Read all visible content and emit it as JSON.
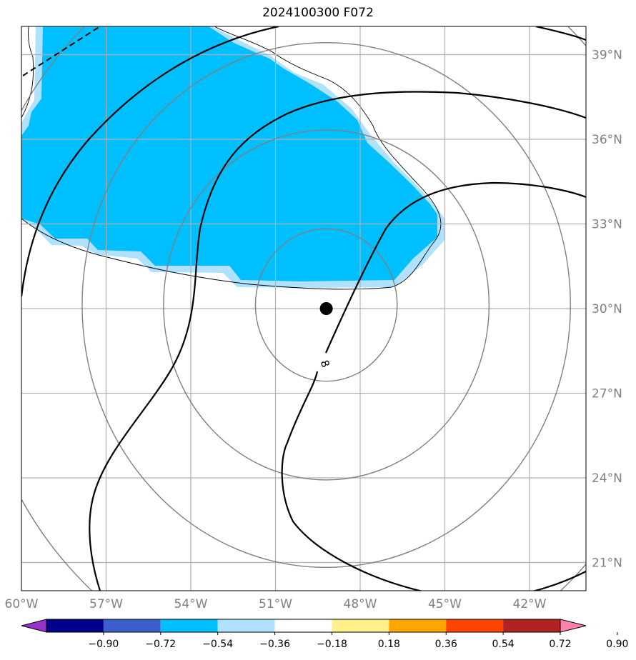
{
  "title": "2024100300 F072",
  "map": {
    "lon_range": [
      -60,
      -40
    ],
    "lat_range": [
      20,
      40
    ],
    "lon_ticks": [
      {
        "value": -60,
        "label": "60°W"
      },
      {
        "value": -57,
        "label": "57°W"
      },
      {
        "value": -54,
        "label": "54°W"
      },
      {
        "value": -51,
        "label": "51°W"
      },
      {
        "value": -48,
        "label": "48°W"
      },
      {
        "value": -45,
        "label": "45°W"
      },
      {
        "value": -42,
        "label": "42°W"
      }
    ],
    "lat_ticks": [
      {
        "value": 21,
        "label": "21°N"
      },
      {
        "value": 24,
        "label": "24°N"
      },
      {
        "value": 27,
        "label": "27°N"
      },
      {
        "value": 30,
        "label": "30°N"
      },
      {
        "value": 33,
        "label": "33°N"
      },
      {
        "value": 36,
        "label": "36°N"
      },
      {
        "value": 39,
        "label": "39°N"
      }
    ],
    "center": {
      "lon": -49.2,
      "lat": 30.0
    },
    "range_rings_deg": [
      2.7,
      6.2,
      9.3,
      13.5
    ],
    "contour_label": "8",
    "colors": {
      "grid": "#b0b0b0",
      "rings": "#808080",
      "fill_dark": "#00bfff",
      "fill_light": "#b0e2ff",
      "contour": "#000000",
      "marker": "#000000"
    }
  },
  "colorbar": {
    "tick_labels": [
      "−0.90",
      "−0.72",
      "−0.54",
      "−0.36",
      "−0.18",
      "0.18",
      "0.36",
      "0.54",
      "0.72",
      "0.90"
    ],
    "colors": [
      "#9932cc",
      "#00008b",
      "#3a5fcd",
      "#00bfff",
      "#b0e2ff",
      "#ffffff",
      "#fff08c",
      "#ffa500",
      "#ff4500",
      "#b22222",
      "#ff82ab"
    ]
  }
}
